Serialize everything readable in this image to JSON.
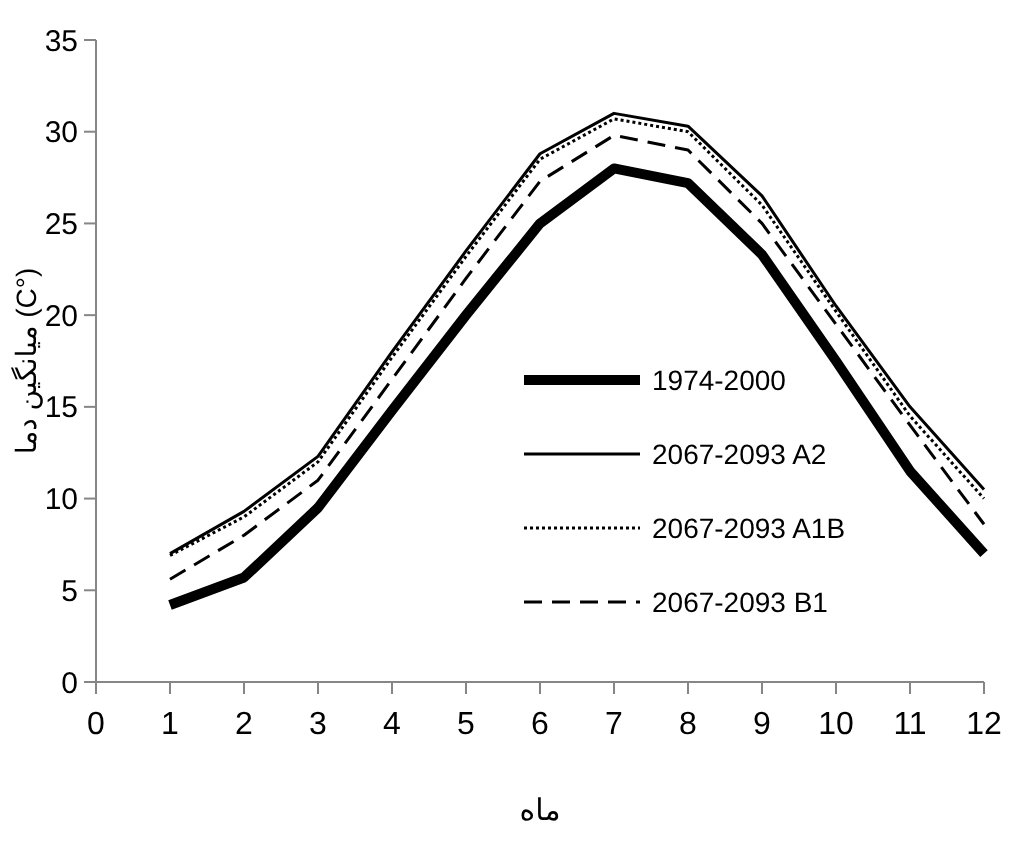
{
  "chart_data": {
    "type": "line",
    "xlabel": "ماه",
    "ylabel": "میانگین دما (C°)",
    "x": [
      1,
      2,
      3,
      4,
      5,
      6,
      7,
      8,
      9,
      10,
      11,
      12
    ],
    "xlim": [
      0,
      12
    ],
    "xticks": [
      0,
      1,
      2,
      3,
      4,
      5,
      6,
      7,
      8,
      9,
      10,
      11,
      12
    ],
    "ylim": [
      0,
      35
    ],
    "yticks": [
      0,
      5,
      10,
      15,
      20,
      25,
      30,
      35
    ],
    "grid": false,
    "legend": "right",
    "marker": "none",
    "series": [
      {
        "name": "1974-2000",
        "color": "#000000",
        "line_style": "solid",
        "values": [
          4.2,
          5.7,
          9.5,
          14.8,
          20,
          25,
          28,
          27.2,
          23.3,
          17.5,
          11.5,
          7
        ]
      },
      {
        "name": "2067-2093 A2",
        "color": "#000000",
        "line_style": "solid",
        "values": [
          7,
          9.3,
          12.3,
          18,
          23.5,
          28.8,
          31,
          30.3,
          26.5,
          20.5,
          15,
          10.5
        ]
      },
      {
        "name": "2067-2093 A1B",
        "color": "#000000",
        "line_style": "dotted",
        "values": [
          6.9,
          9,
          12,
          17.7,
          23.2,
          28.5,
          30.7,
          30,
          26,
          20.2,
          14.5,
          10
        ]
      },
      {
        "name": "2067-2093 B1",
        "color": "#000000",
        "line_style": "dashed",
        "values": [
          5.6,
          8,
          11,
          16.5,
          22,
          27.3,
          29.8,
          29,
          25,
          19.5,
          14,
          8.6
        ]
      }
    ]
  }
}
